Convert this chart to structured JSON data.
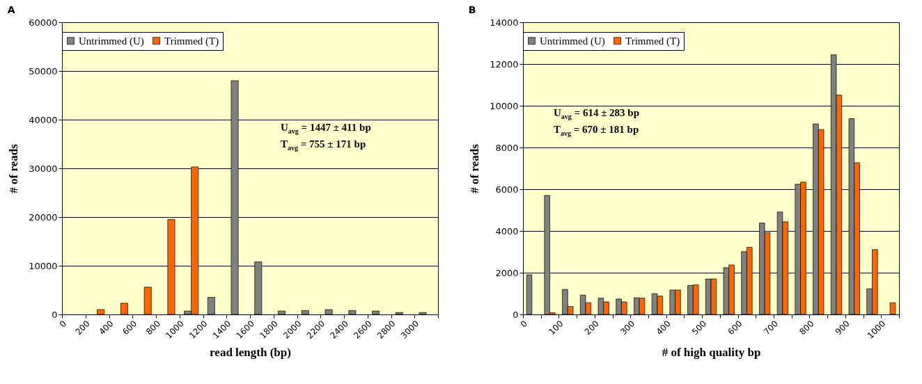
{
  "chart_data": [
    {
      "type": "histogram",
      "title": "A",
      "xlabel": "read length (bp)",
      "ylabel": "# of reads",
      "bins": [
        0,
        200,
        400,
        600,
        800,
        1000,
        1200,
        1400,
        1600,
        1800,
        2000,
        2200,
        2400,
        2600,
        2800,
        3000,
        3200
      ],
      "series": [
        {
          "name": "Untrimmed (U)",
          "color": "#808080",
          "values": [
            null,
            null,
            null,
            null,
            null,
            700,
            3500,
            48000,
            10800,
            700,
            800,
            1000,
            800,
            700,
            400,
            400
          ]
        },
        {
          "name": "Trimmed (T)",
          "color": "#ff6600",
          "values": [
            null,
            1000,
            2300,
            5600,
            19500,
            30300,
            null,
            null,
            null,
            null,
            null,
            null,
            null,
            null,
            null,
            null
          ]
        }
      ],
      "xlim": [
        0,
        3200
      ],
      "xticks": [
        0,
        200,
        400,
        600,
        800,
        1000,
        1200,
        1400,
        1600,
        1800,
        2000,
        2200,
        2400,
        2600,
        2800,
        3000
      ],
      "ylim": [
        0,
        60000
      ],
      "yticks": [
        0,
        10000,
        20000,
        30000,
        40000,
        50000,
        60000
      ],
      "grid": "y",
      "legend": "top",
      "annotations": [
        "U$_{avg}$ = 1447 ± 411 bp",
        "T$_{avg}$ = 755 ± 171 bp"
      ]
    },
    {
      "type": "histogram",
      "title": "B",
      "xlabel": "# of high quality bp",
      "ylabel": "# of reads",
      "bins": [
        0,
        50,
        100,
        150,
        200,
        250,
        300,
        350,
        400,
        450,
        500,
        550,
        600,
        650,
        700,
        750,
        800,
        850,
        900,
        950,
        1000,
        1050
      ],
      "series": [
        {
          "name": "Untrimmed (U)",
          "color": "#808080",
          "values": [
            1900,
            5700,
            1200,
            930,
            780,
            740,
            800,
            1000,
            1170,
            1390,
            1700,
            2240,
            3010,
            4380,
            4910,
            6240,
            9130,
            12440,
            9380,
            1230,
            null
          ]
        },
        {
          "name": "Trimmed (T)",
          "color": "#ff6600",
          "values": [
            null,
            80,
            380,
            560,
            600,
            600,
            780,
            880,
            1170,
            1420,
            1700,
            2370,
            3220,
            3920,
            4440,
            6340,
            8860,
            10510,
            7270,
            3110,
            560
          ]
        }
      ],
      "xlim": [
        0,
        1050
      ],
      "xticks": [
        0,
        {
          "value": 50,
          "label": null
        },
        100,
        {
          "value": 150,
          "label": null
        },
        200,
        {
          "value": 250,
          "label": null
        },
        300,
        {
          "value": 350,
          "label": null
        },
        400,
        {
          "value": 450,
          "label": null
        },
        500,
        {
          "value": 550,
          "label": null
        },
        600,
        {
          "value": 650,
          "label": null
        },
        700,
        {
          "value": 750,
          "label": null
        },
        800,
        {
          "value": 850,
          "label": null
        },
        900,
        {
          "value": 950,
          "label": null
        },
        1000
      ],
      "ylim": [
        0,
        14000
      ],
      "yticks": [
        0,
        2000,
        4000,
        6000,
        8000,
        10000,
        12000,
        14000
      ],
      "grid": "y",
      "legend": "top",
      "annotations": [
        "U$_{avg}$ = 614 ± 283 bp",
        "T$_{avg}$ = 670 ± 181 bp"
      ]
    }
  ]
}
